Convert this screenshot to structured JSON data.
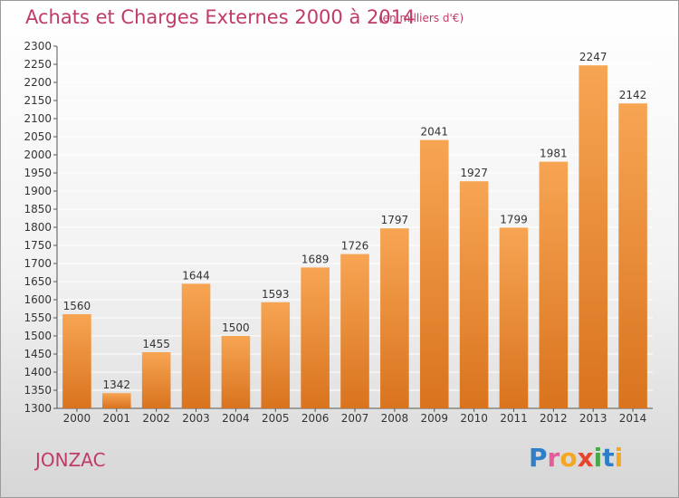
{
  "title": "Achats et Charges Externes 2000 à 2014",
  "unit_note": "(en milliers d'€)",
  "commune": "JONZAC",
  "logo": {
    "text": "Proxiti",
    "letters": [
      {
        "ch": "P",
        "color": "#2f7fc8"
      },
      {
        "ch": "r",
        "color": "#e85a9a"
      },
      {
        "ch": "o",
        "color": "#f5a623"
      },
      {
        "ch": "x",
        "color": "#e8452c"
      },
      {
        "ch": "i",
        "color": "#4aa84a"
      },
      {
        "ch": "t",
        "color": "#2f7fc8"
      },
      {
        "ch": "i",
        "color": "#f5a623"
      }
    ]
  },
  "colors": {
    "title": "#c03a6a",
    "bar_top": "#f7a553",
    "bar_bottom": "#d9731e",
    "grid": "#ffffff",
    "text": "#333333"
  },
  "chart_data": {
    "type": "bar",
    "title": "Achats et Charges Externes 2000 à 2014",
    "xlabel": "",
    "ylabel": "",
    "categories": [
      "2000",
      "2001",
      "2002",
      "2003",
      "2004",
      "2005",
      "2006",
      "2007",
      "2008",
      "2009",
      "2010",
      "2011",
      "2012",
      "2013",
      "2014"
    ],
    "values": [
      1560,
      1342,
      1455,
      1644,
      1500,
      1593,
      1689,
      1726,
      1797,
      2041,
      1927,
      1799,
      1981,
      2247,
      2142
    ],
    "ylim": [
      1300,
      2300
    ],
    "ytick_step": 50,
    "grid": true,
    "legend": "none"
  }
}
